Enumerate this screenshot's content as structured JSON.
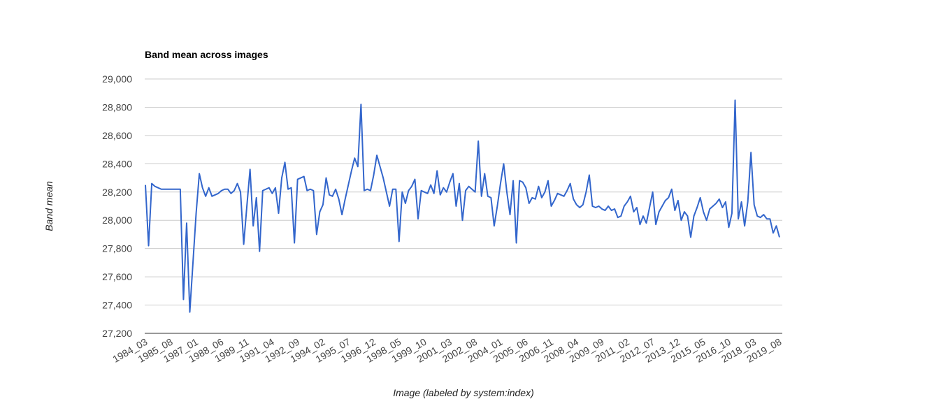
{
  "chart_data": {
    "type": "line",
    "title": "Band mean across images",
    "x_label": "Image (labeled by system:index)",
    "y_label": "Band mean",
    "categories": [
      "1984_03",
      null,
      null,
      null,
      null,
      null,
      null,
      null,
      "1985_08",
      null,
      null,
      null,
      null,
      null,
      null,
      null,
      "1987_01",
      null,
      null,
      null,
      null,
      null,
      null,
      null,
      "1988_06",
      null,
      null,
      null,
      null,
      null,
      null,
      null,
      "1989_11",
      null,
      null,
      null,
      null,
      null,
      null,
      null,
      "1991_04",
      null,
      null,
      null,
      null,
      null,
      null,
      null,
      "1992_09",
      null,
      null,
      null,
      null,
      null,
      null,
      null,
      "1994_02",
      null,
      null,
      null,
      null,
      null,
      null,
      null,
      "1995_07",
      null,
      null,
      null,
      null,
      null,
      null,
      null,
      "1996_12",
      null,
      null,
      null,
      null,
      null,
      null,
      null,
      "1998_05",
      null,
      null,
      null,
      null,
      null,
      null,
      null,
      "1999_10",
      null,
      null,
      null,
      null,
      null,
      null,
      null,
      "2001_03",
      null,
      null,
      null,
      null,
      null,
      null,
      null,
      "2002_08",
      null,
      null,
      null,
      null,
      null,
      null,
      null,
      "2004_01",
      null,
      null,
      null,
      null,
      null,
      null,
      null,
      "2005_06",
      null,
      null,
      null,
      null,
      null,
      null,
      null,
      "2006_11",
      null,
      null,
      null,
      null,
      null,
      null,
      null,
      "2008_04",
      null,
      null,
      null,
      null,
      null,
      null,
      null,
      "2009_09",
      null,
      null,
      null,
      null,
      null,
      null,
      null,
      "2011_02",
      null,
      null,
      null,
      null,
      null,
      null,
      null,
      "2012_07",
      null,
      null,
      null,
      null,
      null,
      null,
      null,
      "2013_12",
      null,
      null,
      null,
      null,
      null,
      null,
      null,
      "2015_05",
      null,
      null,
      null,
      null,
      null,
      null,
      null,
      "2016_10",
      null,
      null,
      null,
      null,
      null,
      null,
      null,
      "2018_03",
      null,
      null,
      null,
      null,
      null,
      null,
      null,
      "2019_08"
    ],
    "values": [
      28250,
      27820,
      28260,
      28240,
      28230,
      28220,
      28220,
      28220,
      28220,
      28220,
      28220,
      28220,
      27440,
      27980,
      27350,
      27700,
      28050,
      28330,
      28230,
      28170,
      28230,
      28170,
      28180,
      28190,
      28210,
      28220,
      28220,
      28190,
      28210,
      28260,
      28200,
      27830,
      28100,
      28360,
      27960,
      28160,
      27780,
      28210,
      28220,
      28230,
      28190,
      28230,
      28050,
      28300,
      28410,
      28220,
      28230,
      27840,
      28290,
      28300,
      28310,
      28210,
      28220,
      28210,
      27900,
      28060,
      28110,
      28300,
      28180,
      28170,
      28220,
      28150,
      28040,
      28150,
      28250,
      28350,
      28440,
      28380,
      28820,
      28210,
      28220,
      28210,
      28320,
      28460,
      28380,
      28300,
      28200,
      28100,
      28220,
      28220,
      27850,
      28200,
      28120,
      28210,
      28240,
      28290,
      28010,
      28210,
      28200,
      28190,
      28250,
      28190,
      28350,
      28180,
      28230,
      28200,
      28270,
      28330,
      28100,
      28260,
      28000,
      28210,
      28240,
      28220,
      28200,
      28560,
      28170,
      28330,
      28170,
      28160,
      27960,
      28100,
      28260,
      28400,
      28200,
      28040,
      28280,
      27840,
      28280,
      28270,
      28230,
      28120,
      28160,
      28150,
      28240,
      28160,
      28200,
      28280,
      28100,
      28140,
      28190,
      28180,
      28170,
      28210,
      28260,
      28150,
      28110,
      28090,
      28110,
      28200,
      28320,
      28100,
      28090,
      28100,
      28080,
      28070,
      28100,
      28070,
      28080,
      28020,
      28030,
      28100,
      28130,
      28170,
      28060,
      28090,
      27970,
      28030,
      27980,
      28090,
      28200,
      27970,
      28060,
      28100,
      28140,
      28160,
      28220,
      28070,
      28140,
      28000,
      28060,
      28030,
      27880,
      28030,
      28090,
      28160,
      28060,
      28000,
      28080,
      28100,
      28120,
      28150,
      28090,
      28130,
      27950,
      28050,
      28850,
      28010,
      28130,
      27960,
      28130,
      28480,
      28110,
      28030,
      28020,
      28040,
      28010,
      28010,
      27910,
      27960,
      27880
    ],
    "color": "#3366cc",
    "ylim": [
      27200,
      29000
    ],
    "yticks": [
      {
        "value": 27200,
        "label": "27,200"
      },
      {
        "value": 27400,
        "label": "27,400"
      },
      {
        "value": 27600,
        "label": "27,600"
      },
      {
        "value": 27800,
        "label": "27,800"
      },
      {
        "value": 28000,
        "label": "28,000"
      },
      {
        "value": 28200,
        "label": "28,200"
      },
      {
        "value": 28400,
        "label": "28,400"
      },
      {
        "value": 28600,
        "label": "28,600"
      },
      {
        "value": 28800,
        "label": "28,800"
      },
      {
        "value": 29000,
        "label": "29,000"
      }
    ],
    "grid": true
  }
}
